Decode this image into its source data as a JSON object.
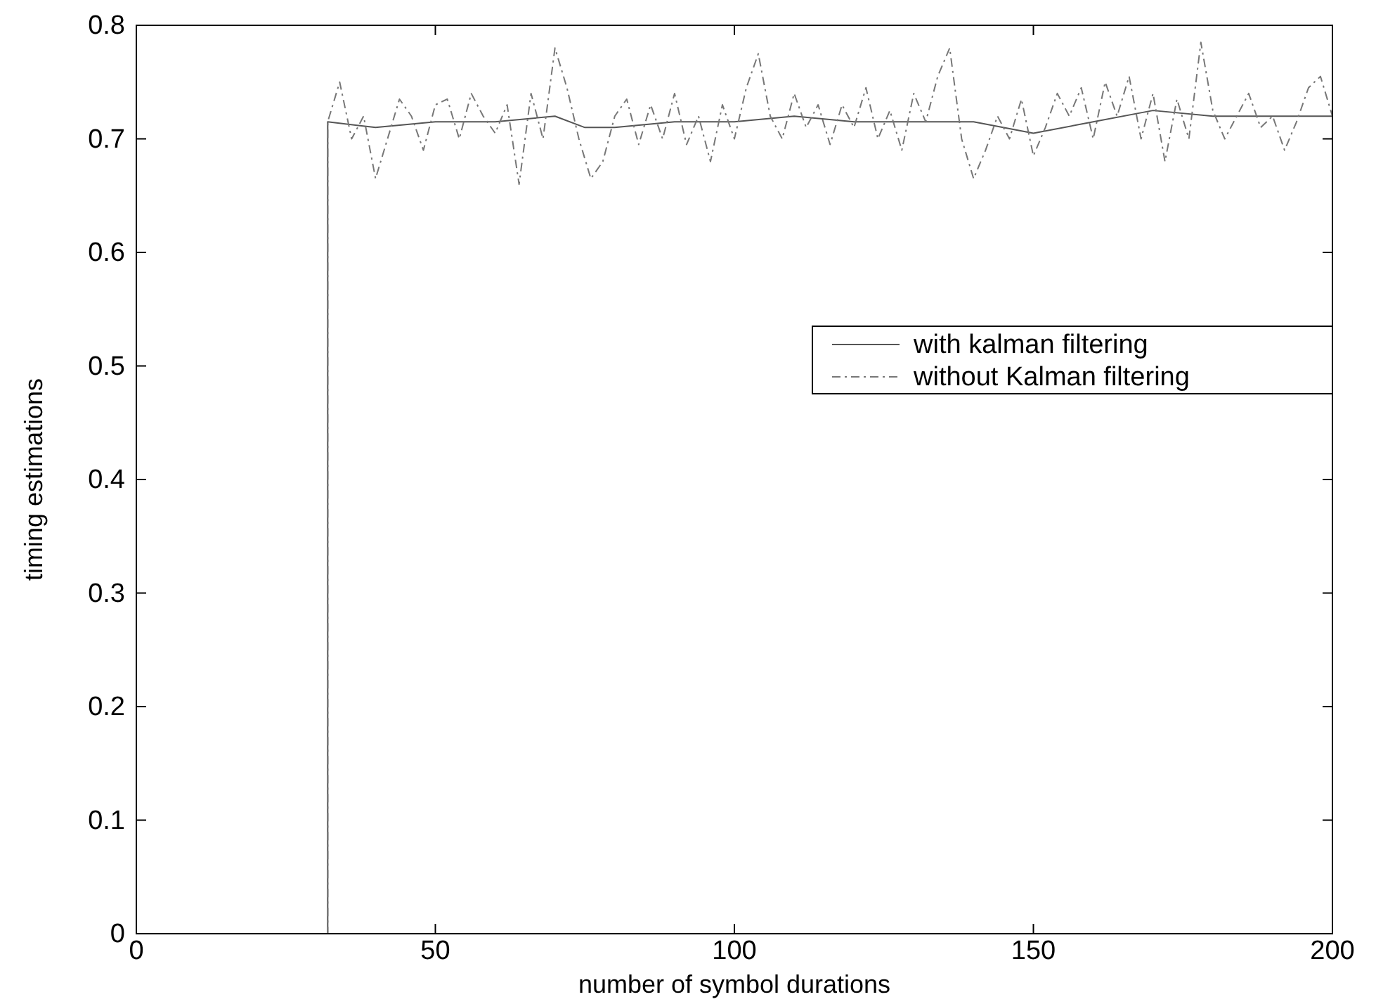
{
  "chart_data": {
    "type": "line",
    "xlabel": "number of symbol durations",
    "ylabel": "timing estimations",
    "xlim": [
      0,
      200
    ],
    "xticks": [
      0,
      50,
      100,
      150,
      200
    ],
    "ylim": [
      0,
      0.8
    ],
    "yticks": [
      0,
      0.1,
      0.2,
      0.3,
      0.4,
      0.5,
      0.6,
      0.7,
      0.8
    ],
    "grid": false,
    "legend": "right",
    "series": [
      {
        "name": "with kalman filtering",
        "color": "#555555",
        "line_style": "solid",
        "x": [
          0,
          32,
          32,
          40,
          50,
          60,
          70,
          75,
          80,
          90,
          100,
          110,
          120,
          130,
          140,
          150,
          160,
          170,
          180,
          190,
          200
        ],
        "values": [
          0,
          0,
          0.715,
          0.71,
          0.715,
          0.715,
          0.72,
          0.71,
          0.71,
          0.715,
          0.715,
          0.72,
          0.715,
          0.715,
          0.715,
          0.705,
          0.715,
          0.725,
          0.72,
          0.72,
          0.72
        ]
      },
      {
        "name": "without Kalman filtering",
        "color": "#777777",
        "line_style": "dashed",
        "x": [
          0,
          32,
          32,
          34,
          36,
          38,
          40,
          42,
          44,
          46,
          48,
          50,
          52,
          54,
          56,
          58,
          60,
          62,
          64,
          66,
          68,
          70,
          72,
          74,
          76,
          78,
          80,
          82,
          84,
          86,
          88,
          90,
          92,
          94,
          96,
          98,
          100,
          102,
          104,
          106,
          108,
          110,
          112,
          114,
          116,
          118,
          120,
          122,
          124,
          126,
          128,
          130,
          132,
          134,
          136,
          138,
          140,
          142,
          144,
          146,
          148,
          150,
          152,
          154,
          156,
          158,
          160,
          162,
          164,
          166,
          168,
          170,
          172,
          174,
          176,
          178,
          180,
          182,
          184,
          186,
          188,
          190,
          192,
          194,
          196,
          198,
          200
        ],
        "values": [
          0,
          0,
          0.715,
          0.75,
          0.7,
          0.72,
          0.665,
          0.7,
          0.735,
          0.72,
          0.69,
          0.73,
          0.735,
          0.7,
          0.74,
          0.72,
          0.705,
          0.73,
          0.66,
          0.74,
          0.7,
          0.78,
          0.745,
          0.7,
          0.665,
          0.68,
          0.72,
          0.735,
          0.695,
          0.73,
          0.7,
          0.74,
          0.695,
          0.72,
          0.68,
          0.73,
          0.7,
          0.745,
          0.775,
          0.72,
          0.7,
          0.74,
          0.71,
          0.73,
          0.695,
          0.73,
          0.71,
          0.745,
          0.7,
          0.725,
          0.69,
          0.74,
          0.715,
          0.755,
          0.78,
          0.7,
          0.665,
          0.69,
          0.72,
          0.7,
          0.735,
          0.685,
          0.71,
          0.74,
          0.72,
          0.745,
          0.7,
          0.75,
          0.72,
          0.755,
          0.7,
          0.74,
          0.68,
          0.735,
          0.7,
          0.785,
          0.725,
          0.7,
          0.72,
          0.74,
          0.71,
          0.72,
          0.69,
          0.715,
          0.745,
          0.755,
          0.72
        ]
      }
    ]
  }
}
